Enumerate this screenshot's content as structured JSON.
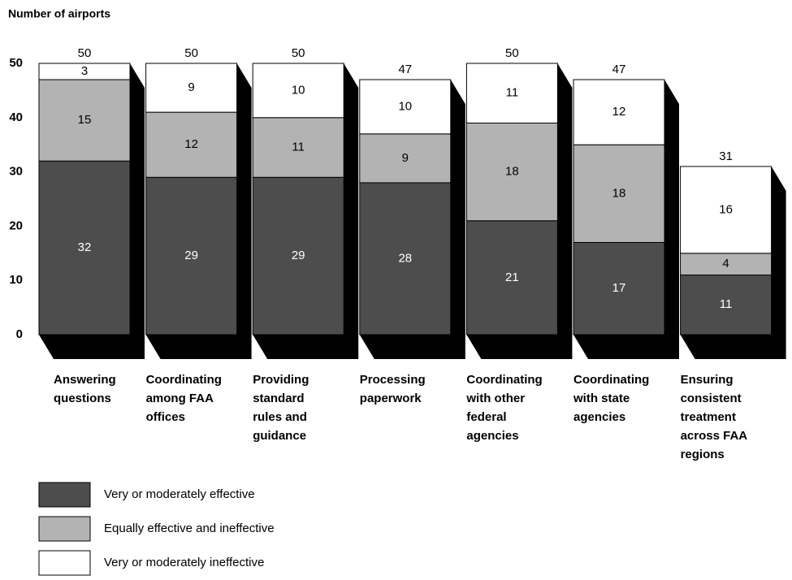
{
  "chart_data": {
    "type": "stacked-bar-3d",
    "y_label": "Number of airports",
    "categories": [
      "Answering questions",
      "Coordinating among FAA offices",
      "Providing standard rules and guidance",
      "Processing paperwork",
      "Coordinating with other federal agencies",
      "Coordinating with state agencies",
      "Ensuring consistent treatment across FAA regions"
    ],
    "series": [
      {
        "name": "Very or moderately effective",
        "color": "#4d4d4d",
        "label_color": "#ffffff",
        "values": [
          32,
          29,
          29,
          28,
          21,
          17,
          11
        ]
      },
      {
        "name": "Equally effective and ineffective",
        "color": "#b3b3b3",
        "label_color": "#000000",
        "values": [
          15,
          12,
          11,
          9,
          18,
          18,
          4
        ]
      },
      {
        "name": "Very or moderately ineffective",
        "color": "#ffffff",
        "label_color": "#000000",
        "values": [
          3,
          9,
          10,
          10,
          11,
          12,
          16
        ]
      }
    ],
    "totals": [
      50,
      50,
      50,
      47,
      50,
      47,
      31
    ],
    "ylim": [
      0,
      50
    ],
    "yticks": [
      0,
      10,
      20,
      30,
      40,
      50
    ]
  }
}
